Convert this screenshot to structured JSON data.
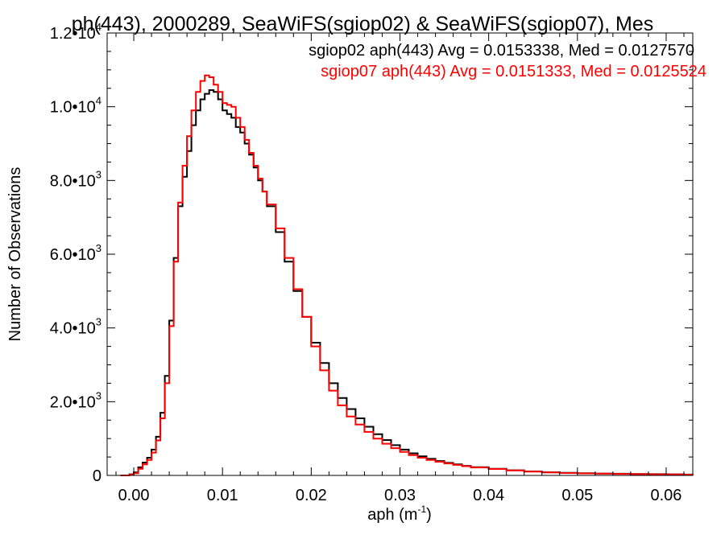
{
  "chart_data": {
    "type": "line",
    "title": "ph(443), 2000289, SeaWiFS(sgiop02) & SeaWiFS(sgiop07), Mes",
    "xlabel": {
      "base": "aph (m",
      "sup": "-1",
      "tail": ")"
    },
    "ylabel": "Number of Observations",
    "xlim": [
      -0.003,
      0.063
    ],
    "ylim": [
      0,
      12000
    ],
    "x_ticks": [
      {
        "value": 0.0,
        "label": "0.00"
      },
      {
        "value": 0.01,
        "label": "0.01"
      },
      {
        "value": 0.02,
        "label": "0.02"
      },
      {
        "value": 0.03,
        "label": "0.03"
      },
      {
        "value": 0.04,
        "label": "0.04"
      },
      {
        "value": 0.05,
        "label": "0.05"
      },
      {
        "value": 0.06,
        "label": "0.06"
      }
    ],
    "y_ticks": [
      {
        "value": 0,
        "mant": "0",
        "exp": ""
      },
      {
        "value": 2000,
        "mant": "2.0•10",
        "exp": "3"
      },
      {
        "value": 4000,
        "mant": "4.0•10",
        "exp": "3"
      },
      {
        "value": 6000,
        "mant": "6.0•10",
        "exp": "3"
      },
      {
        "value": 8000,
        "mant": "8.0•10",
        "exp": "3"
      },
      {
        "value": 10000,
        "mant": "1.0•10",
        "exp": "4"
      },
      {
        "value": 12000,
        "mant": "1.2•10",
        "exp": "4"
      }
    ],
    "grid": false,
    "legend_position": "top-right",
    "series": [
      {
        "name": "sgiop02",
        "color": "#000000",
        "legend": "sgiop02 aph(443) Avg = 0.0153338, Med = 0.0127570",
        "x": [
          -0.0015,
          -0.0005,
          0.0,
          0.0005,
          0.001,
          0.0015,
          0.002,
          0.0025,
          0.003,
          0.0035,
          0.004,
          0.0045,
          0.005,
          0.0055,
          0.006,
          0.0065,
          0.007,
          0.0075,
          0.008,
          0.0085,
          0.009,
          0.0095,
          0.01,
          0.0105,
          0.011,
          0.0115,
          0.012,
          0.0125,
          0.013,
          0.0135,
          0.014,
          0.0145,
          0.015,
          0.016,
          0.017,
          0.018,
          0.019,
          0.02,
          0.021,
          0.022,
          0.023,
          0.024,
          0.025,
          0.026,
          0.027,
          0.028,
          0.029,
          0.03,
          0.031,
          0.032,
          0.033,
          0.034,
          0.035,
          0.036,
          0.037,
          0.038,
          0.04,
          0.042,
          0.044,
          0.046,
          0.048,
          0.05,
          0.052,
          0.054,
          0.056,
          0.058,
          0.06,
          0.062,
          0.063
        ],
        "y": [
          0,
          30,
          80,
          220,
          350,
          480,
          700,
          1050,
          1700,
          2700,
          4200,
          5900,
          7300,
          8100,
          8800,
          9500,
          9900,
          10200,
          10350,
          10450,
          10400,
          10200,
          9900,
          9800,
          9700,
          9450,
          9300,
          9000,
          8700,
          8350,
          8000,
          7700,
          7300,
          6600,
          5800,
          5000,
          4300,
          3600,
          3050,
          2500,
          2100,
          1800,
          1550,
          1320,
          1120,
          960,
          820,
          700,
          600,
          520,
          450,
          390,
          340,
          300,
          260,
          225,
          180,
          140,
          110,
          85,
          70,
          60,
          50,
          45,
          40,
          35,
          30,
          25,
          20
        ]
      },
      {
        "name": "sgiop07",
        "color": "#ff0000",
        "legend": "sgiop07 aph(443) Avg = 0.0151333, Med = 0.0125524",
        "x": [
          -0.0015,
          -0.0005,
          0.0,
          0.0005,
          0.001,
          0.0015,
          0.002,
          0.0025,
          0.003,
          0.0035,
          0.004,
          0.0045,
          0.005,
          0.0055,
          0.006,
          0.0065,
          0.007,
          0.0075,
          0.008,
          0.0085,
          0.009,
          0.0095,
          0.01,
          0.0105,
          0.011,
          0.0115,
          0.012,
          0.0125,
          0.013,
          0.0135,
          0.014,
          0.0145,
          0.015,
          0.016,
          0.017,
          0.018,
          0.019,
          0.02,
          0.021,
          0.022,
          0.023,
          0.024,
          0.025,
          0.026,
          0.027,
          0.028,
          0.029,
          0.03,
          0.031,
          0.032,
          0.033,
          0.034,
          0.035,
          0.036,
          0.037,
          0.038,
          0.04,
          0.042,
          0.044,
          0.046,
          0.048,
          0.05,
          0.052,
          0.054,
          0.056,
          0.058,
          0.06,
          0.062,
          0.063
        ],
        "y": [
          0,
          20,
          60,
          180,
          300,
          420,
          620,
          950,
          1550,
          2500,
          4050,
          5800,
          7400,
          8400,
          9200,
          9900,
          10400,
          10700,
          10850,
          10800,
          10600,
          10400,
          10100,
          10050,
          10000,
          9700,
          9450,
          9100,
          8750,
          8400,
          8050,
          7700,
          7350,
          6700,
          5900,
          5050,
          4300,
          3500,
          2850,
          2300,
          1900,
          1600,
          1380,
          1180,
          1000,
          860,
          740,
          640,
          550,
          480,
          420,
          370,
          325,
          285,
          250,
          215,
          175,
          135,
          105,
          80,
          65,
          55,
          48,
          42,
          36,
          31,
          27,
          22,
          18
        ]
      }
    ]
  }
}
